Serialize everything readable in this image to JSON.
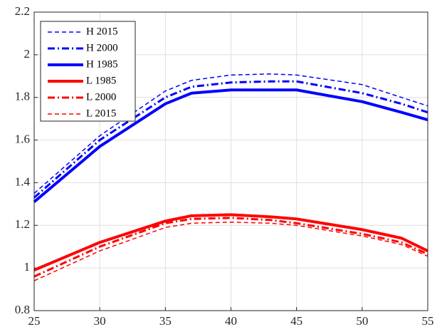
{
  "chart_data": {
    "type": "line",
    "x": [
      25,
      30,
      35,
      37,
      40,
      43,
      45,
      50,
      53,
      55
    ],
    "series": [
      {
        "name": "H 2015",
        "color": "#0000ff",
        "line_style": "dashed",
        "values": [
          1.35,
          1.62,
          1.83,
          1.88,
          1.905,
          1.91,
          1.905,
          1.86,
          1.8,
          1.76
        ]
      },
      {
        "name": "H 2000",
        "color": "#0000ff",
        "line_style": "dashdot",
        "values": [
          1.33,
          1.6,
          1.8,
          1.85,
          1.87,
          1.875,
          1.875,
          1.82,
          1.77,
          1.73
        ]
      },
      {
        "name": "H 1985",
        "color": "#0000ff",
        "line_style": "solid",
        "values": [
          1.31,
          1.57,
          1.77,
          1.82,
          1.835,
          1.835,
          1.835,
          1.78,
          1.73,
          1.695
        ]
      },
      {
        "name": "L 1985",
        "color": "#ff0000",
        "line_style": "solid",
        "values": [
          0.99,
          1.12,
          1.22,
          1.245,
          1.25,
          1.24,
          1.23,
          1.18,
          1.14,
          1.08
        ]
      },
      {
        "name": "L 2000",
        "color": "#ff0000",
        "line_style": "dashdot",
        "values": [
          0.96,
          1.1,
          1.21,
          1.23,
          1.235,
          1.225,
          1.21,
          1.16,
          1.12,
          1.065
        ]
      },
      {
        "name": "L 2015",
        "color": "#ff0000",
        "line_style": "dashed",
        "values": [
          0.94,
          1.08,
          1.19,
          1.21,
          1.215,
          1.21,
          1.2,
          1.15,
          1.11,
          1.055
        ]
      }
    ],
    "xlim": [
      25,
      55
    ],
    "xticks": [
      25,
      30,
      35,
      40,
      45,
      50,
      55
    ],
    "ylim": [
      0.8,
      2.2
    ],
    "yticks": [
      0.8,
      1,
      1.2,
      1.4,
      1.6,
      1.8,
      2,
      2.2
    ],
    "grid": true,
    "legend": "upper-left"
  }
}
